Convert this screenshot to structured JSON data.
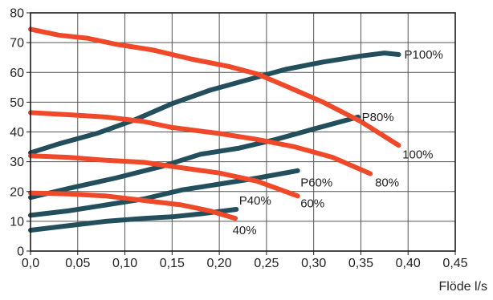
{
  "chart_data": {
    "type": "line",
    "title": "",
    "xlabel": "Flöde l/s",
    "ylabel": "",
    "xlim": [
      0,
      0.45
    ],
    "ylim": [
      0,
      80
    ],
    "grid": true,
    "x_ticks": [
      "0,0",
      "0,05",
      "0,10",
      "0,15",
      "0,20",
      "0,25",
      "0,30",
      "0,35",
      "0,40",
      "0,45"
    ],
    "y_ticks": [
      "0",
      "10",
      "20",
      "30",
      "40",
      "50",
      "60",
      "70",
      "80"
    ],
    "colors": {
      "pressure": "#234f5d",
      "power": "#f0492a",
      "grid": "#555555"
    },
    "series": [
      {
        "name": "P100%",
        "group": "pressure",
        "points": [
          [
            0,
            33
          ],
          [
            0.03,
            36
          ],
          [
            0.07,
            39.5
          ],
          [
            0.11,
            44
          ],
          [
            0.15,
            49.5
          ],
          [
            0.19,
            54
          ],
          [
            0.23,
            57.5
          ],
          [
            0.27,
            61
          ],
          [
            0.31,
            63.5
          ],
          [
            0.35,
            65.5
          ],
          [
            0.375,
            66.5
          ],
          [
            0.39,
            66
          ]
        ]
      },
      {
        "name": "P80%",
        "group": "pressure",
        "points": [
          [
            0,
            18
          ],
          [
            0.04,
            21
          ],
          [
            0.09,
            24.5
          ],
          [
            0.14,
            28.5
          ],
          [
            0.18,
            32.5
          ],
          [
            0.22,
            34.5
          ],
          [
            0.26,
            37.5
          ],
          [
            0.3,
            41
          ],
          [
            0.347,
            45
          ]
        ]
      },
      {
        "name": "P60%",
        "group": "pressure",
        "points": [
          [
            0,
            12
          ],
          [
            0.04,
            13.5
          ],
          [
            0.08,
            15.5
          ],
          [
            0.12,
            17.5
          ],
          [
            0.16,
            20.5
          ],
          [
            0.2,
            22.5
          ],
          [
            0.24,
            24.5
          ],
          [
            0.283,
            27
          ]
        ]
      },
      {
        "name": "P40%",
        "group": "pressure",
        "points": [
          [
            0,
            7
          ],
          [
            0.04,
            8.5
          ],
          [
            0.08,
            10
          ],
          [
            0.12,
            11
          ],
          [
            0.15,
            11.5
          ],
          [
            0.18,
            12.5
          ],
          [
            0.218,
            14
          ]
        ]
      },
      {
        "name": "100%",
        "group": "power",
        "points": [
          [
            0,
            74.5
          ],
          [
            0.03,
            72.5
          ],
          [
            0.06,
            71.5
          ],
          [
            0.09,
            69.5
          ],
          [
            0.13,
            67.5
          ],
          [
            0.17,
            64.5
          ],
          [
            0.21,
            62
          ],
          [
            0.24,
            59.5
          ],
          [
            0.27,
            55.5
          ],
          [
            0.31,
            50
          ],
          [
            0.35,
            43.5
          ],
          [
            0.39,
            35.5
          ]
        ]
      },
      {
        "name": "80%",
        "group": "power",
        "points": [
          [
            0,
            46.5
          ],
          [
            0.04,
            45.8
          ],
          [
            0.08,
            45
          ],
          [
            0.12,
            43.5
          ],
          [
            0.15,
            41.5
          ],
          [
            0.2,
            39.5
          ],
          [
            0.24,
            37.5
          ],
          [
            0.28,
            35
          ],
          [
            0.32,
            31.5
          ],
          [
            0.36,
            26
          ]
        ]
      },
      {
        "name": "60%",
        "group": "power",
        "points": [
          [
            0,
            32
          ],
          [
            0.04,
            31.5
          ],
          [
            0.08,
            30.5
          ],
          [
            0.12,
            29.8
          ],
          [
            0.16,
            28
          ],
          [
            0.2,
            26.2
          ],
          [
            0.24,
            23.5
          ],
          [
            0.283,
            18.5
          ]
        ]
      },
      {
        "name": "40%",
        "group": "power",
        "points": [
          [
            0,
            19.5
          ],
          [
            0.04,
            19.2
          ],
          [
            0.08,
            18.5
          ],
          [
            0.12,
            17
          ],
          [
            0.16,
            15.5
          ],
          [
            0.19,
            13.5
          ],
          [
            0.217,
            11
          ]
        ]
      }
    ],
    "labels": [
      {
        "text": "P100%",
        "x": 0.396,
        "y": 66
      },
      {
        "text": "P80%",
        "x": 0.351,
        "y": 45
      },
      {
        "text": "P60%",
        "x": 0.286,
        "y": 23
      },
      {
        "text": "P40%",
        "x": 0.221,
        "y": 17
      },
      {
        "text": "100%",
        "x": 0.394,
        "y": 32.5
      },
      {
        "text": "80%",
        "x": 0.365,
        "y": 23
      },
      {
        "text": "60%",
        "x": 0.286,
        "y": 16
      },
      {
        "text": "40%",
        "x": 0.214,
        "y": 7
      }
    ]
  }
}
